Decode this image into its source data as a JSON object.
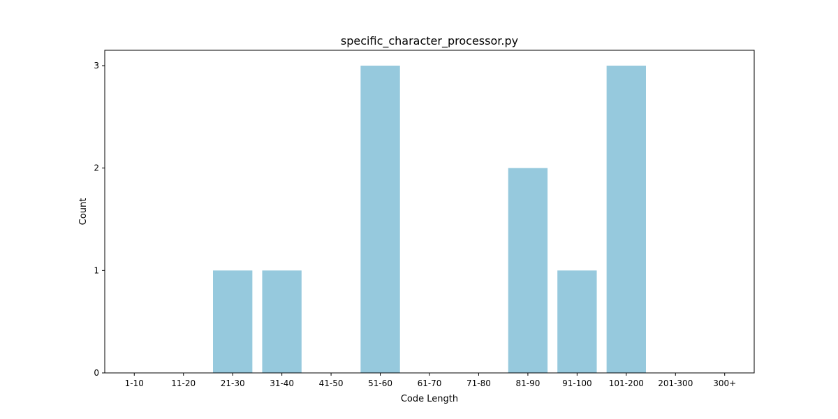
{
  "chart_data": {
    "type": "bar",
    "title": "specific_character_processor.py",
    "xlabel": "Code Length",
    "ylabel": "Count",
    "categories": [
      "1-10",
      "11-20",
      "21-30",
      "31-40",
      "41-50",
      "51-60",
      "61-70",
      "71-80",
      "81-90",
      "91-100",
      "101-200",
      "201-300",
      "300+"
    ],
    "values": [
      0,
      0,
      1,
      1,
      0,
      3,
      0,
      0,
      2,
      1,
      3,
      0,
      0
    ],
    "ylim": [
      0,
      3.15
    ],
    "yticks": [
      0,
      1,
      2,
      3
    ],
    "grid": false,
    "bar_color": "#96c9dd"
  }
}
